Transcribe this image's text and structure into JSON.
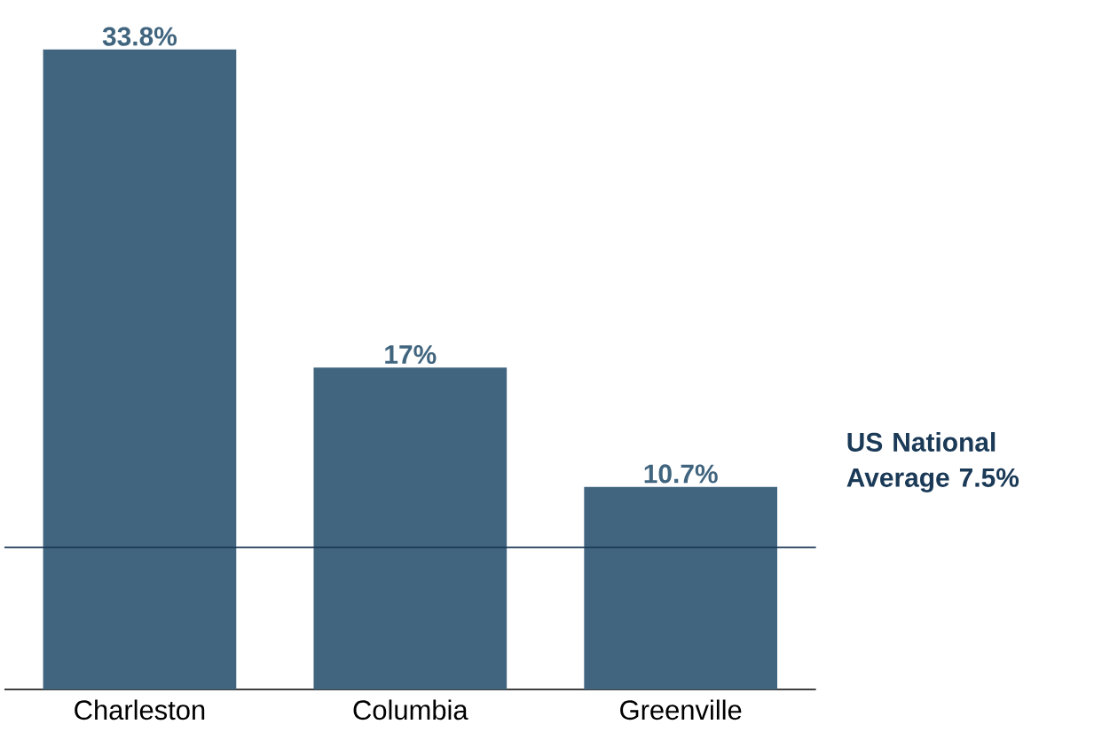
{
  "chart_data": {
    "type": "bar",
    "categories": [
      "Charleston",
      "Columbia",
      "Greenville"
    ],
    "values": [
      33.8,
      17,
      10.7
    ],
    "value_labels": [
      "33.8%",
      "17%",
      "10.7%"
    ],
    "color": "#41657f",
    "ref_lines": [
      {
        "axis": "y",
        "value": 7.5,
        "label": "US National Average 7.5%",
        "color": "#1b3a57"
      }
    ]
  }
}
